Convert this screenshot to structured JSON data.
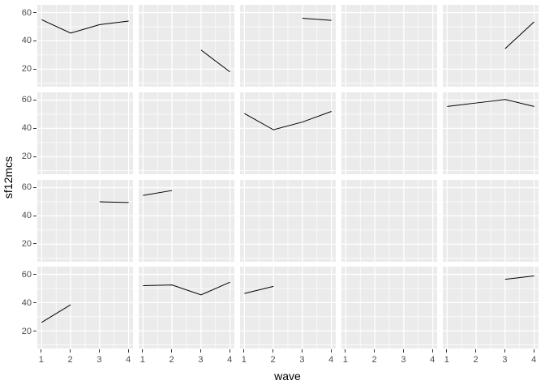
{
  "chart_data": {
    "type": "line",
    "xlabel": "wave",
    "ylabel": "sf12mcs",
    "facet_rows": 4,
    "facet_cols": 5,
    "x_ticks": [
      "1",
      "2",
      "3",
      "4"
    ],
    "y_ticks": [
      "60",
      "40",
      "20"
    ],
    "y_tick_values": [
      60,
      40,
      20
    ],
    "x_tick_values": [
      1,
      2,
      3,
      4
    ],
    "x_domain": [
      0.85,
      4.15
    ],
    "y_domain": [
      7.5,
      65.5
    ],
    "grid_major_x": [
      1,
      2,
      3,
      4
    ],
    "grid_major_y": [
      20,
      40,
      60
    ],
    "grid_minor_x": [
      1.5,
      2.5,
      3.5
    ],
    "grid_minor_y": [
      10,
      30,
      50
    ],
    "style": {
      "panel_bg": "#EBEBEB",
      "grid_color": "#FFFFFF",
      "line_color": "#000000",
      "tick_label_color": "#4D4D4D",
      "tick_mark_color": "#333333",
      "axis_title_color": "#000000",
      "background": "#FFFFFF"
    },
    "panels": [
      {
        "row": 1,
        "col": 1,
        "x": [
          1,
          2,
          3,
          4
        ],
        "y": [
          55,
          45.5,
          51.5,
          54
        ]
      },
      {
        "row": 1,
        "col": 2,
        "x": [
          3,
          4
        ],
        "y": [
          33.5,
          18
        ]
      },
      {
        "row": 1,
        "col": 3,
        "x": [
          3,
          4
        ],
        "y": [
          56,
          54.5
        ]
      },
      {
        "row": 1,
        "col": 4,
        "x": [],
        "y": []
      },
      {
        "row": 1,
        "col": 5,
        "x": [
          3,
          4
        ],
        "y": [
          34.5,
          53.5
        ]
      },
      {
        "row": 2,
        "col": 1,
        "x": [],
        "y": []
      },
      {
        "row": 2,
        "col": 2,
        "x": [],
        "y": []
      },
      {
        "row": 2,
        "col": 3,
        "x": [
          1,
          2,
          3,
          4
        ],
        "y": [
          50.5,
          39,
          44.5,
          52
        ]
      },
      {
        "row": 2,
        "col": 4,
        "x": [],
        "y": []
      },
      {
        "row": 2,
        "col": 5,
        "x": [
          1,
          2,
          3,
          4
        ],
        "y": [
          55.5,
          58,
          60.5,
          55.5
        ]
      },
      {
        "row": 3,
        "col": 1,
        "x": [
          3,
          4
        ],
        "y": [
          50,
          49.5
        ]
      },
      {
        "row": 3,
        "col": 2,
        "x": [
          1,
          2
        ],
        "y": [
          54.5,
          58
        ]
      },
      {
        "row": 3,
        "col": 3,
        "x": [],
        "y": []
      },
      {
        "row": 3,
        "col": 4,
        "x": [],
        "y": []
      },
      {
        "row": 3,
        "col": 5,
        "x": [],
        "y": []
      },
      {
        "row": 4,
        "col": 1,
        "x": [
          1,
          2
        ],
        "y": [
          26,
          38.5
        ]
      },
      {
        "row": 4,
        "col": 2,
        "x": [
          1,
          2,
          3,
          4
        ],
        "y": [
          52,
          52.5,
          45.5,
          54.5
        ]
      },
      {
        "row": 4,
        "col": 3,
        "x": [
          1,
          2
        ],
        "y": [
          46.5,
          51.5
        ]
      },
      {
        "row": 4,
        "col": 4,
        "x": [],
        "y": []
      },
      {
        "row": 4,
        "col": 5,
        "x": [
          3,
          4
        ],
        "y": [
          56.5,
          59
        ]
      }
    ]
  }
}
